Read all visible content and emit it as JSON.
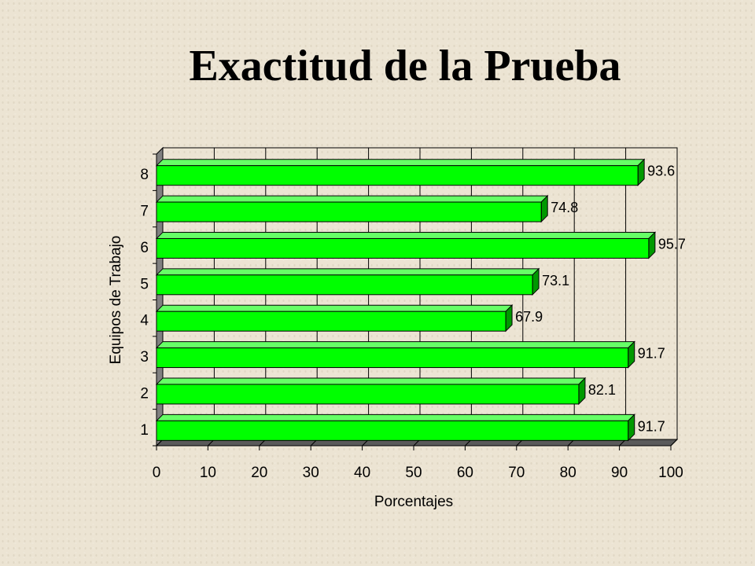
{
  "title": "Exactitud de la Prueba",
  "chart_data": {
    "type": "bar",
    "orientation": "horizontal",
    "title": "Exactitud de la Prueba",
    "xlabel": "Porcentajes",
    "ylabel": "Equipos de Trabajo",
    "categories": [
      "1",
      "2",
      "3",
      "4",
      "5",
      "6",
      "7",
      "8"
    ],
    "values": [
      91.7,
      82.1,
      91.7,
      67.9,
      73.1,
      95.7,
      74.8,
      93.6
    ],
    "value_labels": [
      "91.7",
      "82.1",
      "91.7",
      "67.9",
      "73.1",
      "95.7",
      "74.8",
      "93.6"
    ],
    "xlim": [
      0,
      100
    ],
    "xticks": [
      "0",
      "10",
      "20",
      "30",
      "40",
      "50",
      "60",
      "70",
      "80",
      "90",
      "100"
    ],
    "grid": "vertical",
    "legend": "none",
    "style": "3d",
    "colors": {
      "bar_front": "#00ff00",
      "bar_top": "#66ff66",
      "bar_side": "#009900",
      "wall": "#808080",
      "wall_dark": "#5a5a5a",
      "grid": "#000000"
    }
  }
}
